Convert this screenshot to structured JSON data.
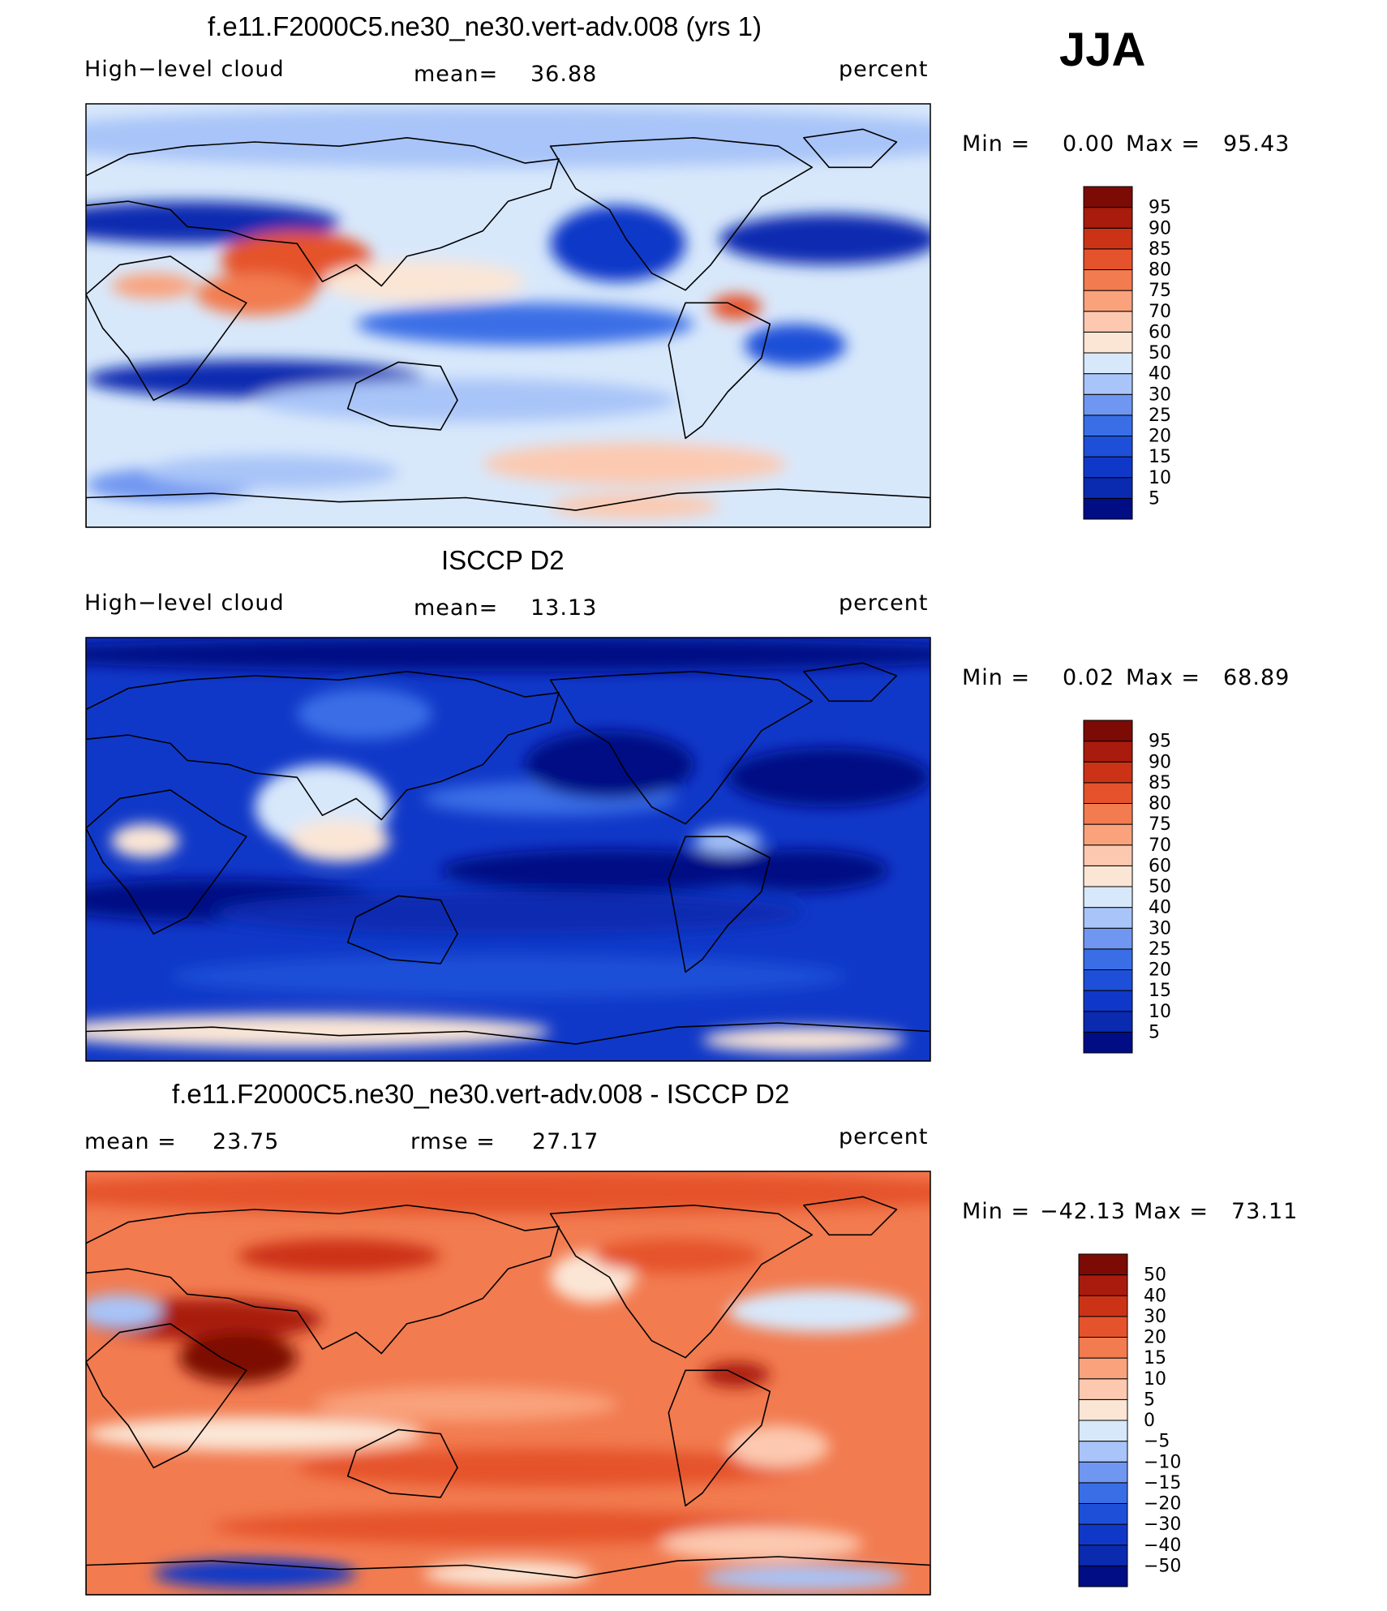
{
  "season": "JJA",
  "panels": [
    {
      "title": "f.e11.F2000C5.ne30_ne30.vert-adv.008 (yrs 1)",
      "left_label": "High−level cloud",
      "stat1_label": "mean=",
      "stat1_value": "36.88",
      "units": "percent",
      "min_label": "Min =",
      "min_value": "0.00",
      "max_label": "Max =",
      "max_value": "95.43"
    },
    {
      "title": "ISCCP D2",
      "left_label": "High−level cloud",
      "stat1_label": "mean=",
      "stat1_value": "13.13",
      "units": "percent",
      "min_label": "Min =",
      "min_value": "0.02",
      "max_label": "Max =",
      "max_value": "68.89"
    },
    {
      "title": "f.e11.F2000C5.ne30_ne30.vert-adv.008 - ISCCP D2",
      "stat1_label": "mean =",
      "stat1_value": "23.75",
      "stat2_label": "rmse =",
      "stat2_value": "27.17",
      "units": "percent",
      "min_label": "Min =",
      "min_value": "−42.13",
      "max_label": "Max =",
      "max_value": "73.11"
    }
  ],
  "chart_data": [
    {
      "type": "heatmap",
      "title": "f.e11.F2000C5.ne30_ne30.vert-adv.008 (yrs 1)",
      "variable": "High-level cloud",
      "units": "percent",
      "mean": 36.88,
      "min": 0.0,
      "max": 95.43,
      "colorbar_levels": [
        5,
        10,
        15,
        20,
        25,
        30,
        40,
        50,
        60,
        70,
        75,
        80,
        85,
        90,
        95
      ],
      "colorbar_colors": [
        "#000d84",
        "#0a2bb0",
        "#1038c8",
        "#1d4fd8",
        "#3a6ee6",
        "#6f96f0",
        "#a8c4f8",
        "#d8e8fb",
        "#fbe6d6",
        "#fcc9b0",
        "#f9a27c",
        "#f27b50",
        "#e5532c",
        "#cc3316",
        "#a91b0d",
        "#7c0b06"
      ]
    },
    {
      "type": "heatmap",
      "title": "ISCCP D2",
      "variable": "High-level cloud",
      "units": "percent",
      "mean": 13.13,
      "min": 0.02,
      "max": 68.89,
      "colorbar_levels": [
        5,
        10,
        15,
        20,
        25,
        30,
        40,
        50,
        60,
        70,
        75,
        80,
        85,
        90,
        95
      ],
      "colorbar_colors": [
        "#000d84",
        "#0a2bb0",
        "#1038c8",
        "#1d4fd8",
        "#3a6ee6",
        "#6f96f0",
        "#a8c4f8",
        "#d8e8fb",
        "#fbe6d6",
        "#fcc9b0",
        "#f9a27c",
        "#f27b50",
        "#e5532c",
        "#cc3316",
        "#a91b0d",
        "#7c0b06"
      ]
    },
    {
      "type": "heatmap",
      "title": "f.e11.F2000C5.ne30_ne30.vert-adv.008 - ISCCP D2",
      "units": "percent",
      "mean": 23.75,
      "rmse": 27.17,
      "min": -42.13,
      "max": 73.11,
      "colorbar_levels": [
        -50,
        -40,
        -30,
        -20,
        -15,
        -10,
        -5,
        0,
        5,
        10,
        15,
        20,
        30,
        40,
        50
      ],
      "colorbar_colors": [
        "#000d84",
        "#0a2bb0",
        "#1038c8",
        "#1d4fd8",
        "#3a6ee6",
        "#6f96f0",
        "#a8c4f8",
        "#d8e8fb",
        "#fbe6d6",
        "#fcc9b0",
        "#f9a27c",
        "#f27b50",
        "#e5532c",
        "#cc3316",
        "#a91b0d",
        "#7c0b06"
      ]
    }
  ]
}
